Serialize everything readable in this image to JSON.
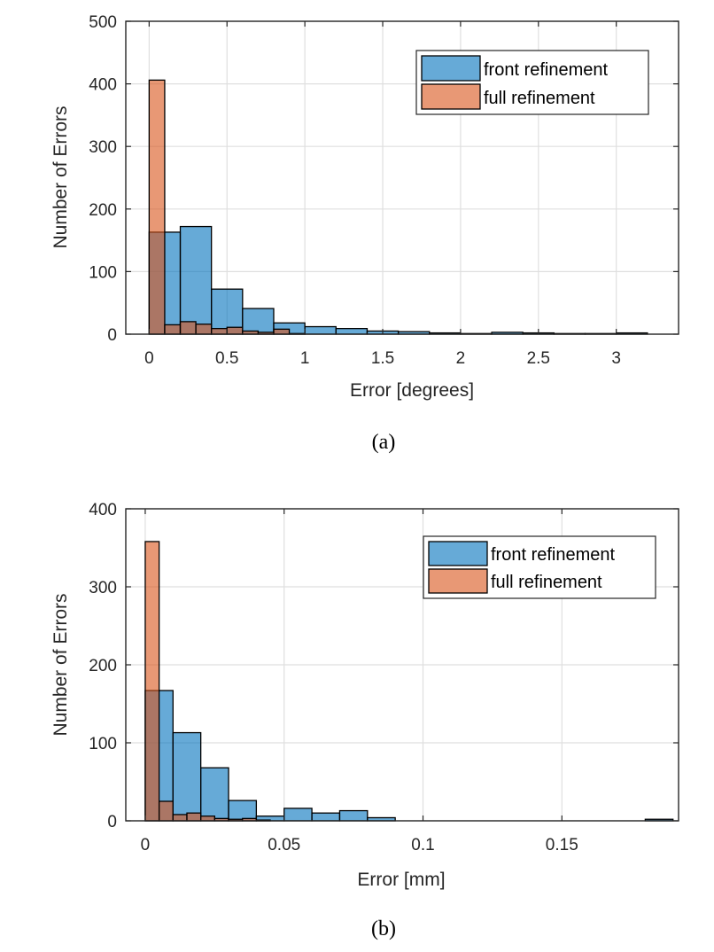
{
  "chart_data": [
    {
      "type": "histogram",
      "caption": "(a)",
      "xlabel": "Error [degrees]",
      "ylabel": "Number of Errors",
      "xlim": [
        -0.15,
        3.4
      ],
      "ylim": [
        0,
        500
      ],
      "xticks": [
        0,
        0.5,
        1,
        1.5,
        2,
        2.5,
        3
      ],
      "xtick_labels": [
        "0",
        "0.5",
        "1",
        "1.5",
        "2",
        "2.5",
        "3"
      ],
      "yticks": [
        0,
        100,
        200,
        300,
        400,
        500
      ],
      "ytick_labels": [
        "0",
        "100",
        "200",
        "300",
        "400",
        "500"
      ],
      "grid": true,
      "legend_position": "top-right",
      "series": [
        {
          "name": "front refinement",
          "color": "#0072BD",
          "bin_width": 0.2,
          "bin_starts": [
            0,
            0.2,
            0.4,
            0.6,
            0.8,
            1.0,
            1.2,
            1.4,
            1.6,
            1.8,
            2.0,
            2.2,
            2.4,
            2.6,
            2.8,
            3.0
          ],
          "values": [
            163,
            172,
            72,
            41,
            18,
            12,
            9,
            5,
            4,
            2,
            1,
            3,
            2,
            1,
            1,
            2
          ]
        },
        {
          "name": "full refinement",
          "color": "#D95319",
          "bin_width": 0.1,
          "bin_starts": [
            0,
            0.1,
            0.2,
            0.3,
            0.4,
            0.5,
            0.6,
            0.7,
            0.8,
            0.9
          ],
          "values": [
            406,
            15,
            20,
            16,
            9,
            11,
            5,
            3,
            8,
            1
          ]
        }
      ]
    },
    {
      "type": "histogram",
      "caption": "(b)",
      "xlabel": "Error [mm]",
      "ylabel": "Number of Errors",
      "xlim": [
        -0.007,
        0.192
      ],
      "ylim": [
        0,
        400
      ],
      "xticks": [
        0,
        0.05,
        0.1,
        0.15
      ],
      "xtick_labels": [
        "0",
        "0.05",
        "0.1",
        "0.15"
      ],
      "yticks": [
        0,
        100,
        200,
        300,
        400
      ],
      "ytick_labels": [
        "0",
        "100",
        "200",
        "300",
        "400"
      ],
      "grid": true,
      "legend_position": "top-right",
      "series": [
        {
          "name": "front refinement",
          "color": "#0072BD",
          "bin_width": 0.01,
          "bin_starts": [
            0,
            0.01,
            0.02,
            0.03,
            0.04,
            0.05,
            0.06,
            0.07,
            0.08,
            0.09,
            0.1,
            0.11,
            0.12,
            0.13,
            0.14,
            0.15,
            0.16,
            0.17,
            0.18
          ],
          "values": [
            167,
            113,
            68,
            26,
            6,
            16,
            10,
            13,
            4,
            0,
            0,
            0,
            0,
            0,
            0,
            0,
            0,
            0,
            2
          ]
        },
        {
          "name": "full refinement",
          "color": "#D95319",
          "bin_width": 0.005,
          "bin_starts": [
            0,
            0.005,
            0.01,
            0.015,
            0.02,
            0.025,
            0.03,
            0.035,
            0.04
          ],
          "values": [
            358,
            25,
            8,
            10,
            6,
            3,
            2,
            3,
            1
          ]
        }
      ]
    }
  ]
}
